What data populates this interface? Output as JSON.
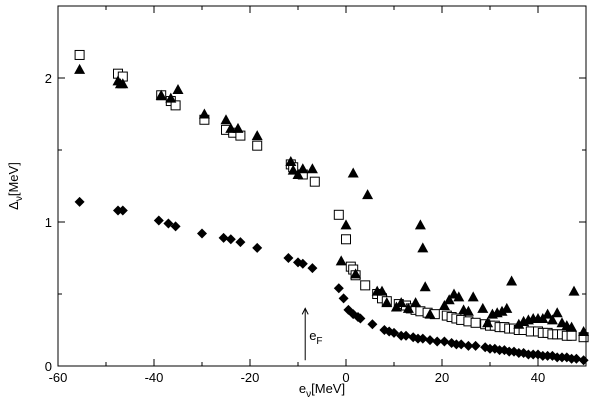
{
  "chart_data": {
    "type": "scatter",
    "title": "",
    "xlabel": "e",
    "xlabel_sub": "ν",
    "xlabel_unit": "[MeV]",
    "ylabel": "Δ",
    "ylabel_sub": "ν",
    "ylabel_unit": "[MeV]",
    "xlim": [
      -60,
      50
    ],
    "ylim": [
      0,
      2.5
    ],
    "xticks": [
      -60,
      -40,
      -20,
      0,
      20,
      40
    ],
    "xtick_labels": [
      "-60",
      "-40",
      "-20",
      "0",
      "20",
      "40"
    ],
    "yticks": [
      0,
      1,
      2
    ],
    "ytick_labels": [
      "0",
      "1",
      "2"
    ],
    "grid": false,
    "legend": null,
    "annotation": {
      "text": "e",
      "sub": "F",
      "x": -8.5,
      "y_from": 0.04,
      "y_to": 0.4
    },
    "series": [
      {
        "marker": "open-square",
        "color": "#000000",
        "points": [
          [
            -55.5,
            2.16
          ],
          [
            -47.5,
            2.03
          ],
          [
            -46.5,
            2.01
          ],
          [
            -38.5,
            1.88
          ],
          [
            -36.5,
            1.84
          ],
          [
            -35.5,
            1.81
          ],
          [
            -29.5,
            1.71
          ],
          [
            -25.0,
            1.64
          ],
          [
            -23.5,
            1.62
          ],
          [
            -22.0,
            1.6
          ],
          [
            -18.5,
            1.53
          ],
          [
            -11.5,
            1.4
          ],
          [
            -11.0,
            1.38
          ],
          [
            -9.0,
            1.33
          ],
          [
            -6.5,
            1.28
          ],
          [
            -1.5,
            1.05
          ],
          [
            0.0,
            0.88
          ],
          [
            1.0,
            0.69
          ],
          [
            1.5,
            0.67
          ],
          [
            2.0,
            0.63
          ],
          [
            4.0,
            0.56
          ],
          [
            6.5,
            0.5
          ],
          [
            7.5,
            0.47
          ],
          [
            8.5,
            0.45
          ],
          [
            11.0,
            0.43
          ],
          [
            12.5,
            0.42
          ],
          [
            13.5,
            0.4
          ],
          [
            14.5,
            0.39
          ],
          [
            15.5,
            0.38
          ],
          [
            17.0,
            0.37
          ],
          [
            18.5,
            0.36
          ],
          [
            21.0,
            0.35
          ],
          [
            22.0,
            0.34
          ],
          [
            23.0,
            0.33
          ],
          [
            24.0,
            0.32
          ],
          [
            25.5,
            0.31
          ],
          [
            27.0,
            0.3
          ],
          [
            29.0,
            0.29
          ],
          [
            30.0,
            0.28
          ],
          [
            31.0,
            0.28
          ],
          [
            32.0,
            0.27
          ],
          [
            33.0,
            0.27
          ],
          [
            34.0,
            0.26
          ],
          [
            35.0,
            0.26
          ],
          [
            36.0,
            0.25
          ],
          [
            37.0,
            0.25
          ],
          [
            38.5,
            0.24
          ],
          [
            40.0,
            0.24
          ],
          [
            41.0,
            0.23
          ],
          [
            42.0,
            0.23
          ],
          [
            43.0,
            0.22
          ],
          [
            44.0,
            0.22
          ],
          [
            45.0,
            0.22
          ],
          [
            46.0,
            0.21
          ],
          [
            47.0,
            0.21
          ],
          [
            49.5,
            0.2
          ]
        ]
      },
      {
        "marker": "filled-triangle",
        "color": "#000000",
        "points": [
          [
            -55.5,
            2.06
          ],
          [
            -47.5,
            1.98
          ],
          [
            -47.0,
            1.96
          ],
          [
            -46.5,
            1.96
          ],
          [
            -38.5,
            1.88
          ],
          [
            -36.5,
            1.86
          ],
          [
            -35.0,
            1.92
          ],
          [
            -29.5,
            1.75
          ],
          [
            -25.0,
            1.71
          ],
          [
            -24.0,
            1.65
          ],
          [
            -22.5,
            1.65
          ],
          [
            -18.5,
            1.6
          ],
          [
            -11.5,
            1.42
          ],
          [
            -11.0,
            1.36
          ],
          [
            -10.0,
            1.33
          ],
          [
            -9.0,
            1.37
          ],
          [
            -7.0,
            1.37
          ],
          [
            1.5,
            1.34
          ],
          [
            4.5,
            1.19
          ],
          [
            0.0,
            0.98
          ],
          [
            -1.0,
            0.73
          ],
          [
            2.0,
            0.64
          ],
          [
            6.5,
            0.52
          ],
          [
            7.5,
            0.52
          ],
          [
            8.5,
            0.44
          ],
          [
            10.5,
            0.41
          ],
          [
            11.5,
            0.44
          ],
          [
            13.0,
            0.4
          ],
          [
            14.5,
            0.44
          ],
          [
            15.5,
            0.98
          ],
          [
            16.0,
            0.82
          ],
          [
            16.5,
            0.55
          ],
          [
            17.5,
            0.36
          ],
          [
            20.5,
            0.42
          ],
          [
            21.5,
            0.46
          ],
          [
            22.5,
            0.5
          ],
          [
            23.5,
            0.48
          ],
          [
            24.5,
            0.39
          ],
          [
            25.5,
            0.38
          ],
          [
            26.5,
            0.48
          ],
          [
            28.5,
            0.4
          ],
          [
            29.5,
            0.3
          ],
          [
            30.5,
            0.36
          ],
          [
            31.5,
            0.37
          ],
          [
            32.5,
            0.38
          ],
          [
            33.5,
            0.4
          ],
          [
            34.5,
            0.59
          ],
          [
            36.0,
            0.29
          ],
          [
            37.0,
            0.31
          ],
          [
            38.0,
            0.32
          ],
          [
            39.0,
            0.33
          ],
          [
            40.0,
            0.33
          ],
          [
            41.0,
            0.33
          ],
          [
            42.0,
            0.36
          ],
          [
            43.0,
            0.32
          ],
          [
            44.0,
            0.37
          ],
          [
            45.0,
            0.3
          ],
          [
            46.0,
            0.28
          ],
          [
            47.0,
            0.27
          ],
          [
            47.5,
            0.52
          ],
          [
            49.5,
            0.24
          ]
        ]
      },
      {
        "marker": "filled-diamond",
        "color": "#000000",
        "points": [
          [
            -55.5,
            1.14
          ],
          [
            -47.5,
            1.08
          ],
          [
            -46.5,
            1.08
          ],
          [
            -39.0,
            1.01
          ],
          [
            -37.0,
            0.99
          ],
          [
            -35.5,
            0.97
          ],
          [
            -30.0,
            0.92
          ],
          [
            -25.5,
            0.89
          ],
          [
            -24.0,
            0.88
          ],
          [
            -22.0,
            0.86
          ],
          [
            -18.5,
            0.82
          ],
          [
            -12.0,
            0.75
          ],
          [
            -10.0,
            0.72
          ],
          [
            -9.0,
            0.71
          ],
          [
            -7.0,
            0.68
          ],
          [
            -1.5,
            0.54
          ],
          [
            -0.5,
            0.47
          ],
          [
            0.5,
            0.39
          ],
          [
            1.5,
            0.36
          ],
          [
            2.5,
            0.34
          ],
          [
            3.0,
            0.33
          ],
          [
            5.5,
            0.29
          ],
          [
            8.0,
            0.25
          ],
          [
            9.0,
            0.24
          ],
          [
            10.0,
            0.23
          ],
          [
            11.5,
            0.21
          ],
          [
            12.5,
            0.21
          ],
          [
            14.0,
            0.2
          ],
          [
            15.0,
            0.19
          ],
          [
            16.0,
            0.19
          ],
          [
            17.5,
            0.18
          ],
          [
            19.0,
            0.17
          ],
          [
            20.5,
            0.17
          ],
          [
            22.0,
            0.16
          ],
          [
            23.0,
            0.15
          ],
          [
            24.0,
            0.15
          ],
          [
            25.5,
            0.14
          ],
          [
            27.0,
            0.14
          ],
          [
            29.0,
            0.13
          ],
          [
            30.0,
            0.12
          ],
          [
            31.0,
            0.12
          ],
          [
            32.0,
            0.11
          ],
          [
            33.0,
            0.11
          ],
          [
            34.0,
            0.1
          ],
          [
            35.0,
            0.1
          ],
          [
            36.0,
            0.09
          ],
          [
            37.0,
            0.09
          ],
          [
            38.0,
            0.08
          ],
          [
            39.0,
            0.08
          ],
          [
            40.0,
            0.08
          ],
          [
            41.0,
            0.07
          ],
          [
            42.0,
            0.07
          ],
          [
            43.0,
            0.07
          ],
          [
            44.0,
            0.06
          ],
          [
            45.0,
            0.06
          ],
          [
            46.0,
            0.06
          ],
          [
            47.0,
            0.05
          ],
          [
            48.0,
            0.05
          ],
          [
            49.5,
            0.04
          ]
        ]
      }
    ]
  }
}
